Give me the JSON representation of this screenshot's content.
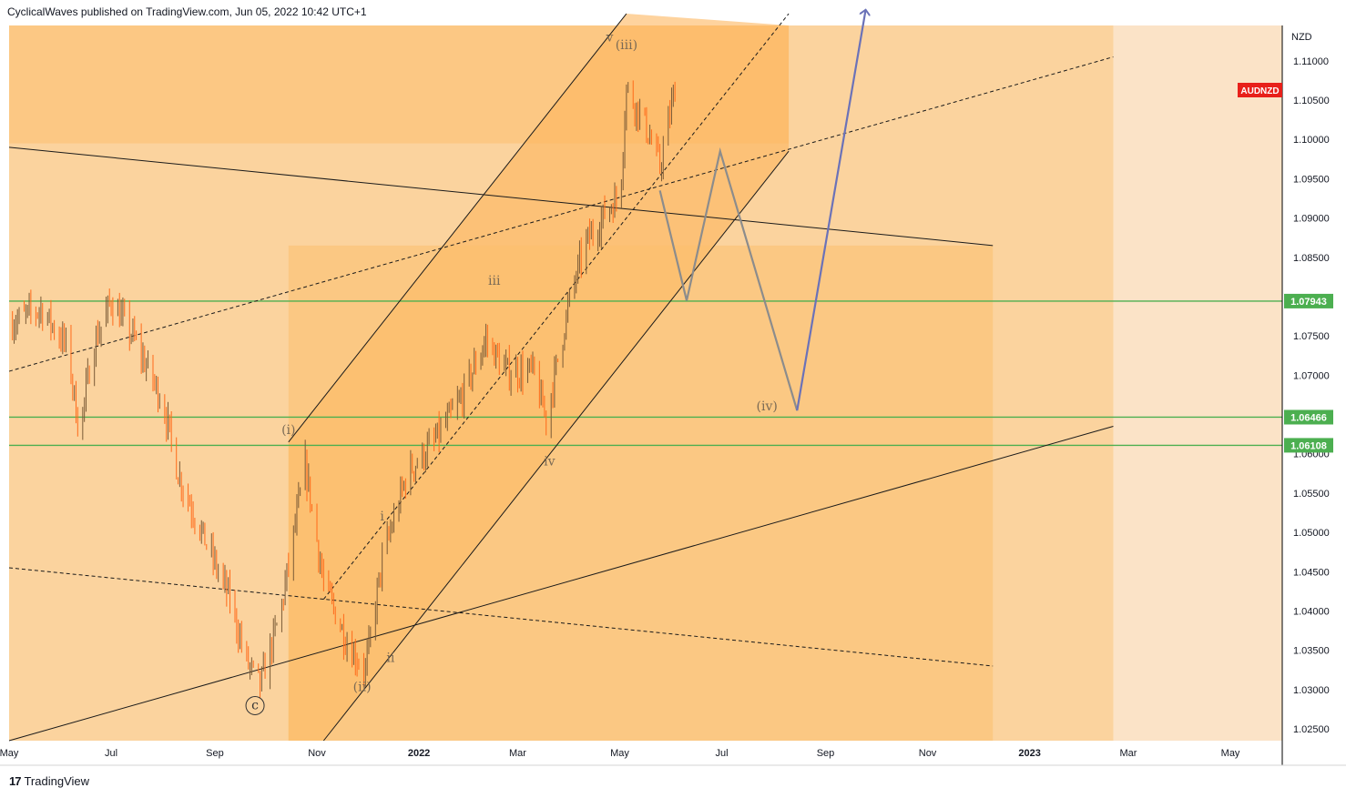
{
  "header": {
    "publisher": "CyclicalWaves published on TradingView.com, Jun 05, 2022 10:42 UTC+1"
  },
  "footer": {
    "logo": "17",
    "brand": "TradingView"
  },
  "colors": {
    "zone_light": "#fbe3c7",
    "zone_mid": "#fbd39e",
    "zone_dark": "#fcbf6e",
    "candle_up": "#7a5a36",
    "candle_down": "#ff6a1a",
    "green_line": "#4caf50",
    "projection_gray": "#8c8c8c",
    "projection_blue": "#6b72b8",
    "symbol_badge": "#e8201a",
    "level_badge": "#4caf50"
  },
  "chart_data": {
    "type": "candlestick",
    "symbol": "AUDNZD",
    "currency": "NZD",
    "x_range": [
      "2021-05-01",
      "2023-06-01"
    ],
    "ylim": [
      1.0235,
      1.1145
    ],
    "x_ticks": [
      {
        "label": "May",
        "date": "2021-05-01"
      },
      {
        "label": "Jul",
        "date": "2021-07-01"
      },
      {
        "label": "Sep",
        "date": "2021-09-01"
      },
      {
        "label": "Nov",
        "date": "2021-11-01"
      },
      {
        "label": "2022",
        "date": "2022-01-01",
        "bold": true
      },
      {
        "label": "Mar",
        "date": "2022-03-01"
      },
      {
        "label": "May",
        "date": "2022-05-01"
      },
      {
        "label": "Jul",
        "date": "2022-07-01"
      },
      {
        "label": "Sep",
        "date": "2022-09-01"
      },
      {
        "label": "Nov",
        "date": "2022-11-01"
      },
      {
        "label": "2023",
        "date": "2023-01-01",
        "bold": true
      },
      {
        "label": "Mar",
        "date": "2023-03-01"
      },
      {
        "label": "May",
        "date": "2023-05-01"
      }
    ],
    "y_ticks": [
      {
        "label": "1.11000",
        "value": 1.11
      },
      {
        "label": "1.10500",
        "value": 1.105
      },
      {
        "label": "1.10000",
        "value": 1.1
      },
      {
        "label": "1.09500",
        "value": 1.095
      },
      {
        "label": "1.09000",
        "value": 1.09
      },
      {
        "label": "1.08500",
        "value": 1.085
      },
      {
        "label": "1.07500",
        "value": 1.075
      },
      {
        "label": "1.07000",
        "value": 1.07
      },
      {
        "label": "1.06000",
        "value": 1.06
      },
      {
        "label": "1.05500",
        "value": 1.055
      },
      {
        "label": "1.05000",
        "value": 1.05
      },
      {
        "label": "1.04500",
        "value": 1.045
      },
      {
        "label": "1.04000",
        "value": 1.04
      },
      {
        "label": "1.03500",
        "value": 1.035
      },
      {
        "label": "1.03000",
        "value": 1.03
      },
      {
        "label": "1.02500",
        "value": 1.025
      }
    ],
    "horizontal_levels": [
      {
        "label": "1.07943",
        "value": 1.07943
      },
      {
        "label": "1.06466",
        "value": 1.06466
      },
      {
        "label": "1.06108",
        "value": 1.06108
      }
    ],
    "price_path": [
      {
        "date": "2021-05-01",
        "value": 1.0765
      },
      {
        "date": "2021-05-20",
        "value": 1.0785
      },
      {
        "date": "2021-06-05",
        "value": 1.0735
      },
      {
        "date": "2021-06-12",
        "value": 1.0625
      },
      {
        "date": "2021-06-20",
        "value": 1.0735
      },
      {
        "date": "2021-07-01",
        "value": 1.0795
      },
      {
        "date": "2021-07-15",
        "value": 1.0745
      },
      {
        "date": "2021-08-01",
        "value": 1.0665
      },
      {
        "date": "2021-08-10",
        "value": 1.0575
      },
      {
        "date": "2021-08-25",
        "value": 1.0495
      },
      {
        "date": "2021-09-10",
        "value": 1.0415
      },
      {
        "date": "2021-09-20",
        "value": 1.0335
      },
      {
        "date": "2021-09-28",
        "value": 1.0305
      },
      {
        "date": "2021-10-10",
        "value": 1.0395
      },
      {
        "date": "2021-10-25",
        "value": 1.0585
      },
      {
        "date": "2021-11-05",
        "value": 1.0435
      },
      {
        "date": "2021-11-20",
        "value": 1.0355
      },
      {
        "date": "2021-11-30",
        "value": 1.0325
      },
      {
        "date": "2021-12-10",
        "value": 1.0465
      },
      {
        "date": "2021-12-25",
        "value": 1.0575
      },
      {
        "date": "2022-01-10",
        "value": 1.0615
      },
      {
        "date": "2022-01-25",
        "value": 1.0665
      },
      {
        "date": "2022-02-10",
        "value": 1.0745
      },
      {
        "date": "2022-02-22",
        "value": 1.0705
      },
      {
        "date": "2022-03-10",
        "value": 1.0705
      },
      {
        "date": "2022-03-18",
        "value": 1.0645
      },
      {
        "date": "2022-04-01",
        "value": 1.0795
      },
      {
        "date": "2022-04-10",
        "value": 1.0865
      },
      {
        "date": "2022-04-25",
        "value": 1.0915
      },
      {
        "date": "2022-05-01",
        "value": 1.0925
      },
      {
        "date": "2022-05-05",
        "value": 1.1065
      },
      {
        "date": "2022-05-15",
        "value": 1.1025
      },
      {
        "date": "2022-05-25",
        "value": 1.0965
      },
      {
        "date": "2022-06-03",
        "value": 1.1065
      }
    ],
    "wave_labels": [
      {
        "label": "c",
        "circled": true,
        "date": "2021-09-25",
        "value": 1.0275
      },
      {
        "label": "(i)",
        "date": "2021-10-15",
        "value": 1.0625
      },
      {
        "label": "(ii)",
        "date": "2021-11-28",
        "value": 1.0298
      },
      {
        "label": "i",
        "date": "2021-12-10",
        "value": 1.0515
      },
      {
        "label": "ii",
        "date": "2021-12-15",
        "value": 1.0335
      },
      {
        "label": "iii",
        "date": "2022-02-15",
        "value": 1.0815
      },
      {
        "label": "iv",
        "date": "2022-03-20",
        "value": 1.0585
      },
      {
        "label": "v",
        "date": "2022-04-25",
        "value": 1.1125
      },
      {
        "label": "(iii)",
        "date": "2022-05-05",
        "value": 1.1115
      },
      {
        "label": "(iv)",
        "date": "2022-07-28",
        "value": 1.0655
      }
    ],
    "projection_gray": [
      {
        "date": "2022-05-25",
        "value": 1.0935
      },
      {
        "date": "2022-06-10",
        "value": 1.0795
      },
      {
        "date": "2022-06-30",
        "value": 1.0985
      },
      {
        "date": "2022-08-15",
        "value": 1.0655
      }
    ],
    "projection_blue": [
      {
        "date": "2022-08-15",
        "value": 1.0655
      },
      {
        "date": "2022-09-25",
        "value": 1.1165
      }
    ],
    "trend_lines": [
      {
        "style": "solid",
        "from": {
          "date": "2021-05-01",
          "value": 1.099
        },
        "to": {
          "date": "2022-12-10",
          "value": 1.0865
        }
      },
      {
        "style": "solid",
        "from": {
          "date": "2021-05-01",
          "value": 1.0235
        },
        "to": {
          "date": "2023-02-20",
          "value": 1.0635
        }
      },
      {
        "style": "solid",
        "from": {
          "date": "2021-10-15",
          "value": 1.0615
        },
        "to": {
          "date": "2022-05-05",
          "value": 1.116
        }
      },
      {
        "style": "solid",
        "from": {
          "date": "2021-11-05",
          "value": 1.0235
        },
        "to": {
          "date": "2022-08-10",
          "value": 1.0985
        }
      },
      {
        "style": "dashed",
        "from": {
          "date": "2021-05-01",
          "value": 1.0705
        },
        "to": {
          "date": "2023-02-20",
          "value": 1.1105
        }
      },
      {
        "style": "dashed",
        "from": {
          "date": "2021-05-01",
          "value": 1.0455
        },
        "to": {
          "date": "2022-12-10",
          "value": 1.033
        }
      },
      {
        "style": "dashed",
        "from": {
          "date": "2021-11-05",
          "value": 1.0415
        },
        "to": {
          "date": "2022-08-10",
          "value": 1.116
        }
      }
    ]
  }
}
